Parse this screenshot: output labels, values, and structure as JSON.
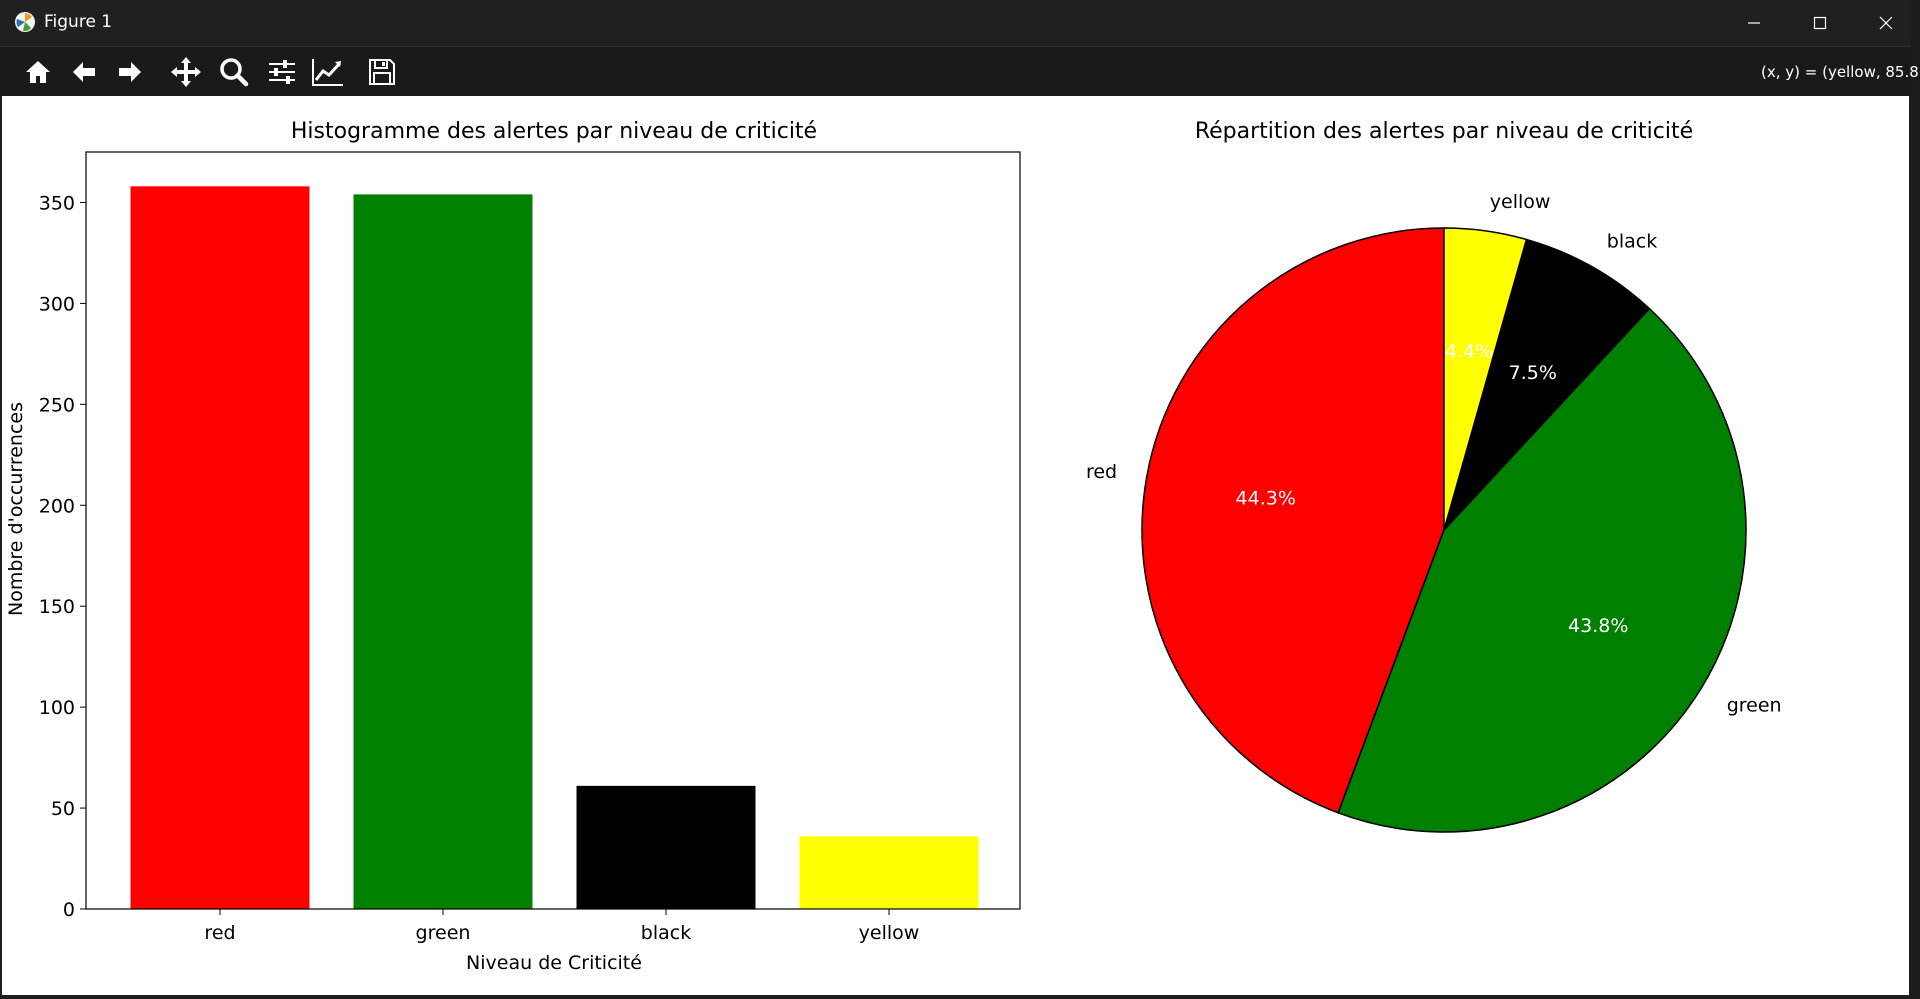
{
  "window": {
    "title": "Figure 1",
    "coords_readout": "(x, y) = (yellow, 85.8"
  },
  "toolbar": {
    "buttons": [
      "home-icon",
      "back-icon",
      "forward-icon",
      "pan-icon",
      "zoom-icon",
      "configure-subplots-icon",
      "edit-axis-icon",
      "save-icon"
    ]
  },
  "chart_data": [
    {
      "type": "bar",
      "title": "Histogramme des alertes par niveau de criticité",
      "xlabel": "Niveau de Criticité",
      "ylabel": "Nombre d'occurrences",
      "categories": [
        "red",
        "green",
        "black",
        "yellow"
      ],
      "values": [
        358,
        354,
        61,
        36
      ],
      "colors": [
        "#ff0000",
        "#008000",
        "#000000",
        "#ffff00"
      ],
      "ylim": [
        0,
        375
      ],
      "yticks": [
        0,
        50,
        100,
        150,
        200,
        250,
        300,
        350
      ]
    },
    {
      "type": "pie",
      "title": "Répartition des alertes par niveau de criticité",
      "labels": [
        "red",
        "green",
        "black",
        "yellow"
      ],
      "values": [
        44.3,
        43.8,
        7.5,
        4.4
      ],
      "pct_labels": [
        "44.3%",
        "43.8%",
        "7.5%",
        "4.4%"
      ],
      "colors": [
        "#ff0000",
        "#008000",
        "#000000",
        "#ffff00"
      ]
    }
  ]
}
